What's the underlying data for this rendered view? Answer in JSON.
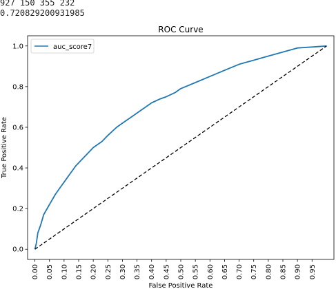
{
  "output": {
    "line1": "927 150 355 232",
    "line2": "0.720829200931985"
  },
  "chart_data": {
    "type": "line",
    "title": "ROC Curve",
    "xlabel": "False Positive Rate",
    "ylabel": "True Positive Rate",
    "xlim": [
      -0.025,
      1.025
    ],
    "ylim": [
      -0.05,
      1.05
    ],
    "x_ticks": [
      "0.00",
      "0.05",
      "0.10",
      "0.15",
      "0.20",
      "0.25",
      "0.30",
      "0.35",
      "0.40",
      "0.45",
      "0.50",
      "0.55",
      "0.60",
      "0.65",
      "0.70",
      "0.75",
      "0.80",
      "0.85",
      "0.90",
      "0.95"
    ],
    "y_ticks": [
      "0.0",
      "0.2",
      "0.4",
      "0.6",
      "0.8",
      "1.0"
    ],
    "grid": false,
    "legend": "top-left",
    "series": [
      {
        "name": "auc_score7",
        "color": "#1f77b4",
        "style": "solid",
        "x": [
          0.0,
          0.005,
          0.01,
          0.02,
          0.03,
          0.05,
          0.07,
          0.09,
          0.1,
          0.12,
          0.14,
          0.16,
          0.18,
          0.2,
          0.23,
          0.25,
          0.28,
          0.3,
          0.33,
          0.35,
          0.38,
          0.4,
          0.43,
          0.45,
          0.48,
          0.5,
          0.55,
          0.6,
          0.65,
          0.7,
          0.75,
          0.8,
          0.85,
          0.9,
          0.95,
          1.0
        ],
        "y": [
          0.0,
          0.03,
          0.08,
          0.12,
          0.17,
          0.22,
          0.27,
          0.31,
          0.33,
          0.37,
          0.41,
          0.44,
          0.47,
          0.5,
          0.53,
          0.56,
          0.6,
          0.62,
          0.65,
          0.67,
          0.7,
          0.72,
          0.74,
          0.75,
          0.77,
          0.79,
          0.82,
          0.85,
          0.88,
          0.91,
          0.93,
          0.95,
          0.97,
          0.99,
          0.995,
          1.0
        ]
      },
      {
        "name": "",
        "color": "#000000",
        "style": "dashed",
        "x": [
          0.0,
          1.0
        ],
        "y": [
          0.0,
          1.0
        ]
      }
    ]
  }
}
